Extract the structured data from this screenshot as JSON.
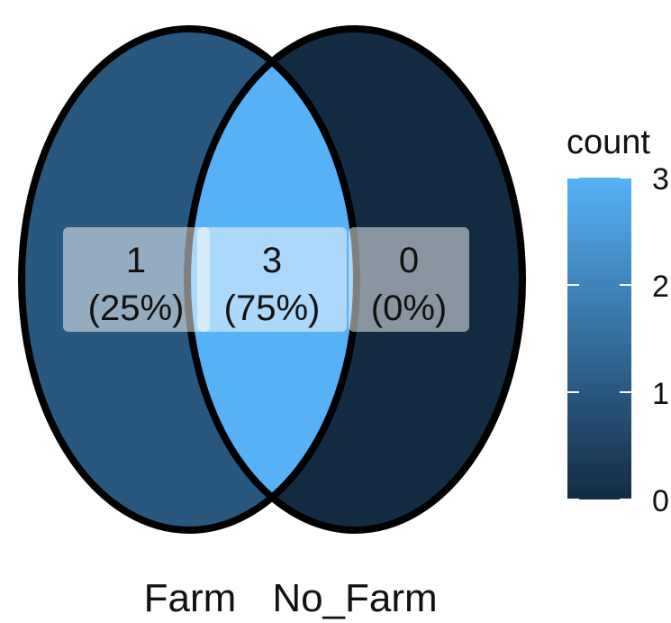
{
  "chart_data": {
    "type": "venn",
    "sets": [
      "Farm",
      "No_Farm"
    ],
    "regions": [
      {
        "name": "Farm only",
        "count": "1",
        "percent": "(25%)",
        "value": 1
      },
      {
        "name": "Farm and No_Farm",
        "count": "3",
        "percent": "(75%)",
        "value": 3
      },
      {
        "name": "No_Farm only",
        "count": "0",
        "percent": "(0%)",
        "value": 0
      }
    ],
    "legend": {
      "title": "count",
      "ticks": [
        "0",
        "1",
        "2",
        "3"
      ],
      "range": [
        0,
        3
      ],
      "low_color": "#132B43",
      "high_color": "#56B1F7",
      "placement": "right"
    }
  }
}
